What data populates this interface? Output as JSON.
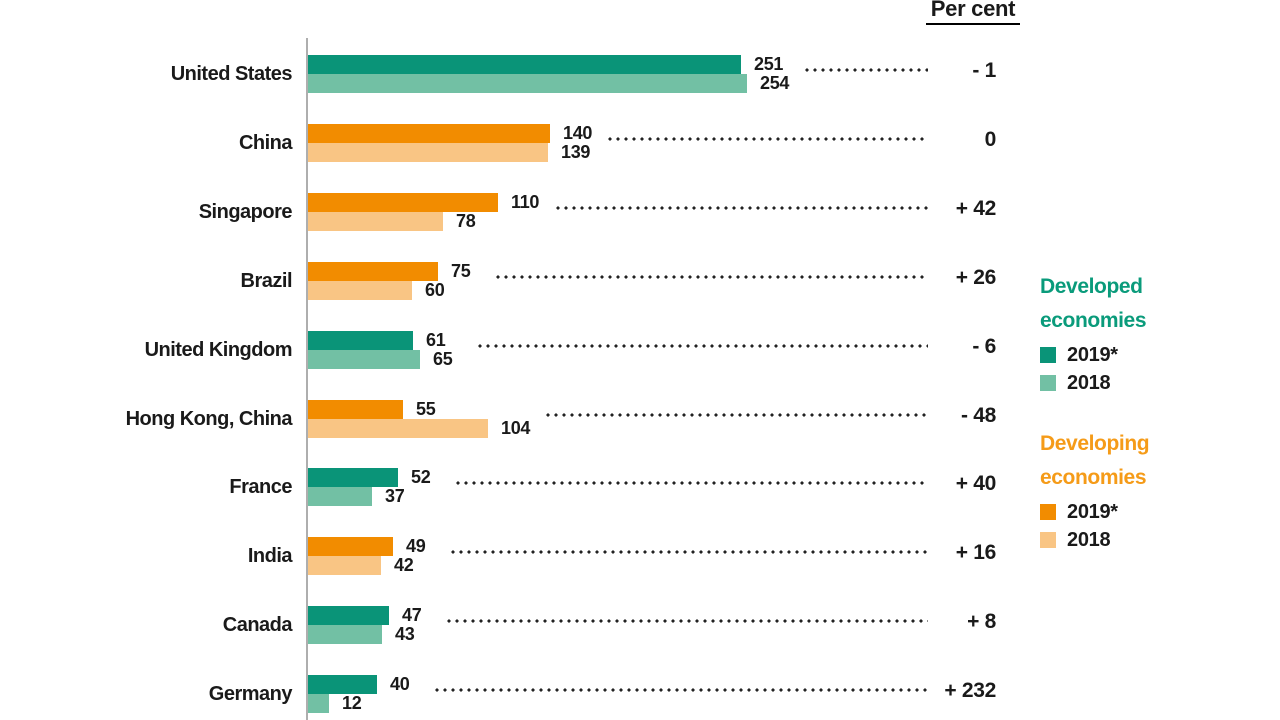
{
  "header": {
    "unit_label": "Per cent"
  },
  "colors": {
    "developed_2019": "#0a9478",
    "developed_2018": "#72c0a4",
    "developing_2019": "#f28c00",
    "developing_2018": "#f9c584",
    "developed_heading": "#0a9b7b",
    "developing_heading": "#f59b18",
    "axis": "#aeaeae",
    "text": "#1a1a1a"
  },
  "legend": {
    "developed": {
      "title": "Developed economies",
      "items": [
        {
          "label": "2019*",
          "color_key": "developed_2019"
        },
        {
          "label": "2018",
          "color_key": "developed_2018"
        }
      ]
    },
    "developing": {
      "title": "Developing economies",
      "items": [
        {
          "label": "2019*",
          "color_key": "developing_2019"
        },
        {
          "label": "2018",
          "color_key": "developing_2018"
        }
      ]
    }
  },
  "chart_data": {
    "type": "bar",
    "orientation": "horizontal",
    "unit_header": "Per cent",
    "categories": [
      "United States",
      "China",
      "Singapore",
      "Brazil",
      "United Kingdom",
      "Hong Kong, China",
      "France",
      "India",
      "Canada",
      "Germany"
    ],
    "group": [
      "developed",
      "developing",
      "developing",
      "developing",
      "developed",
      "developing",
      "developed",
      "developing",
      "developed",
      "developed"
    ],
    "series": [
      {
        "name": "2019*",
        "values": [
          251,
          140,
          110,
          75,
          61,
          55,
          52,
          49,
          47,
          40
        ]
      },
      {
        "name": "2018",
        "values": [
          254,
          139,
          78,
          60,
          65,
          104,
          37,
          42,
          43,
          12
        ]
      }
    ],
    "change_per_cent": [
      "- 1",
      "0",
      "+ 42",
      "+ 26",
      "- 6",
      "- 48",
      "+ 40",
      "+ 16",
      "+ 8",
      "+ 232"
    ],
    "value_labels": true,
    "grid": false,
    "legend_position": "right",
    "xlim": [
      0,
      260
    ]
  }
}
